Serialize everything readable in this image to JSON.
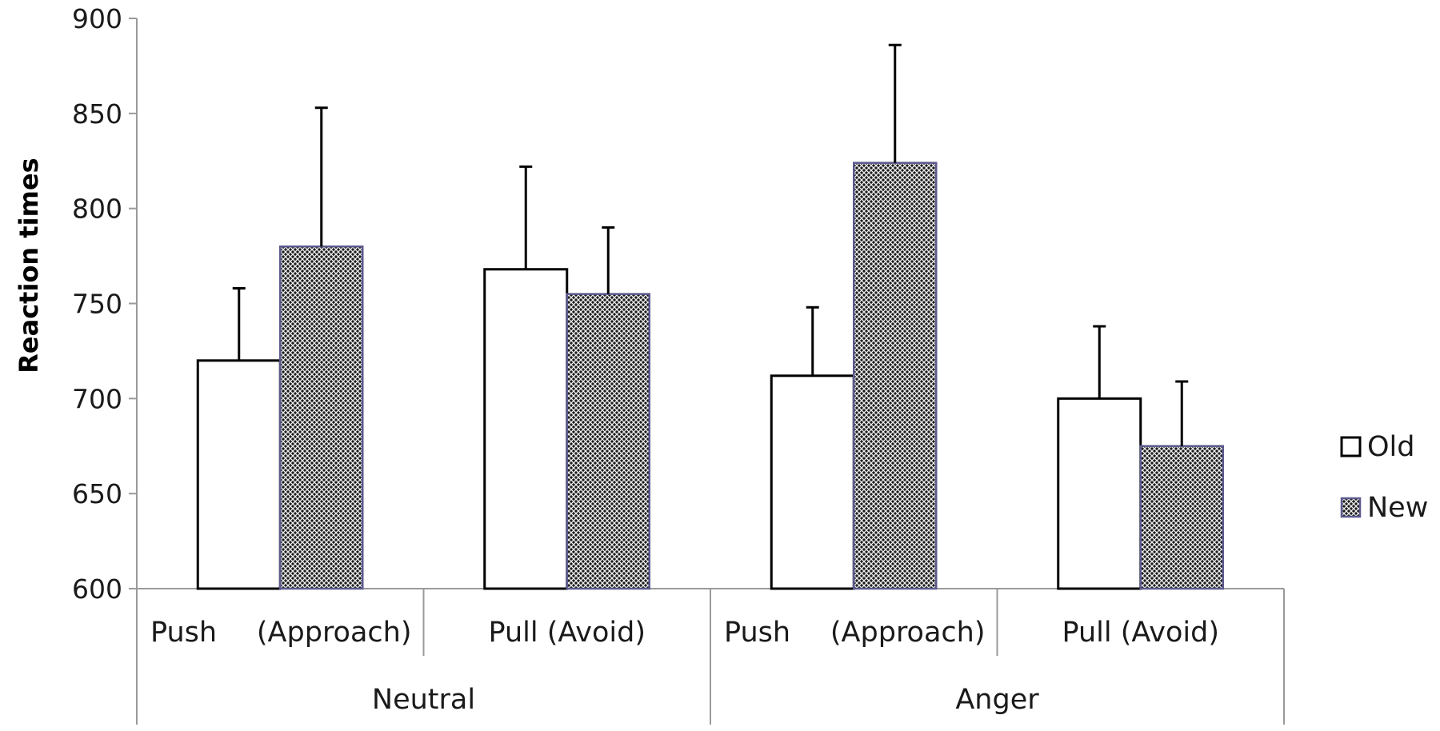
{
  "chart_data": {
    "type": "bar",
    "title": "",
    "xlabel": "",
    "ylabel": "Reaction times",
    "ylim": [
      600,
      900
    ],
    "yticks": [
      "600",
      "650",
      "700",
      "750",
      "800",
      "850",
      "900"
    ],
    "grid": false,
    "legend_position": "right",
    "groups": [
      {
        "label": "Neutral",
        "categories": [
          {
            "label_parts": [
              "Push",
              "(Approach)"
            ]
          },
          {
            "label_parts": [
              "Pull (Avoid)"
            ]
          }
        ]
      },
      {
        "label": "Anger",
        "categories": [
          {
            "label_parts": [
              "Push",
              "(Approach)"
            ]
          },
          {
            "label_parts": [
              "Pull (Avoid)"
            ]
          }
        ]
      }
    ],
    "series": [
      {
        "name": "Old",
        "values": [
          720,
          768,
          712,
          700
        ],
        "error_upper": [
          758,
          822,
          748,
          738
        ],
        "fill": "#ffffff",
        "stroke": "#000000"
      },
      {
        "name": "New",
        "values": [
          780,
          755,
          824,
          675
        ],
        "error_upper": [
          853,
          790,
          886,
          709
        ],
        "fill": "#1c1c1c",
        "stroke": "#5c5a8e"
      }
    ],
    "colors": {
      "axis": "#9a9a9a",
      "error_bar": "#000000",
      "hatch_light": "#f0f0f0"
    }
  }
}
